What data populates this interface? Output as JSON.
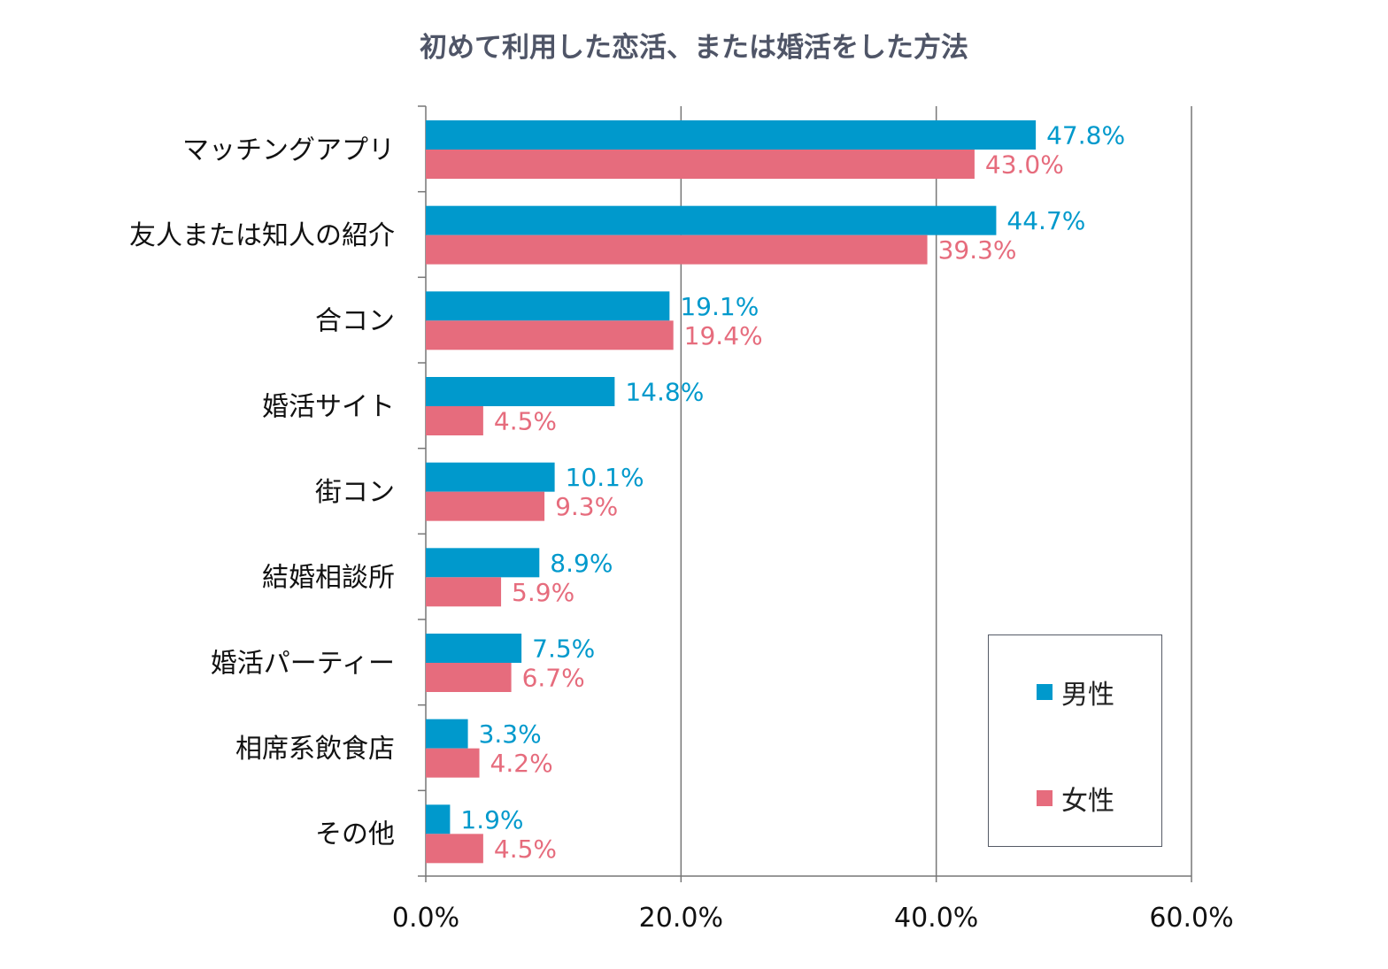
{
  "chart_data": {
    "type": "bar",
    "orientation": "horizontal",
    "title": "初めて利用した恋活、または婚活をした方法",
    "categories": [
      "マッチングアプリ",
      "友人または知人の紹介",
      "合コン",
      "婚活サイト",
      "街コン",
      "結婚相談所",
      "婚活パーティー",
      "相席系飲食店",
      "その他"
    ],
    "series": [
      {
        "name": "男性",
        "color": "#0099cc",
        "values": [
          47.8,
          44.7,
          19.1,
          14.8,
          10.1,
          8.9,
          7.5,
          3.3,
          1.9
        ]
      },
      {
        "name": "女性",
        "color": "#e66c7d",
        "values": [
          43.0,
          39.3,
          19.4,
          4.5,
          9.3,
          5.9,
          6.7,
          4.2,
          4.5
        ]
      }
    ],
    "xlim": [
      0,
      60
    ],
    "xticks": [
      0,
      20,
      40,
      60
    ],
    "xtick_labels": [
      "0.0%",
      "20.0%",
      "40.0%",
      "60.0%"
    ],
    "value_format": "%",
    "grid": "vertical",
    "legend": "bottom-right"
  }
}
